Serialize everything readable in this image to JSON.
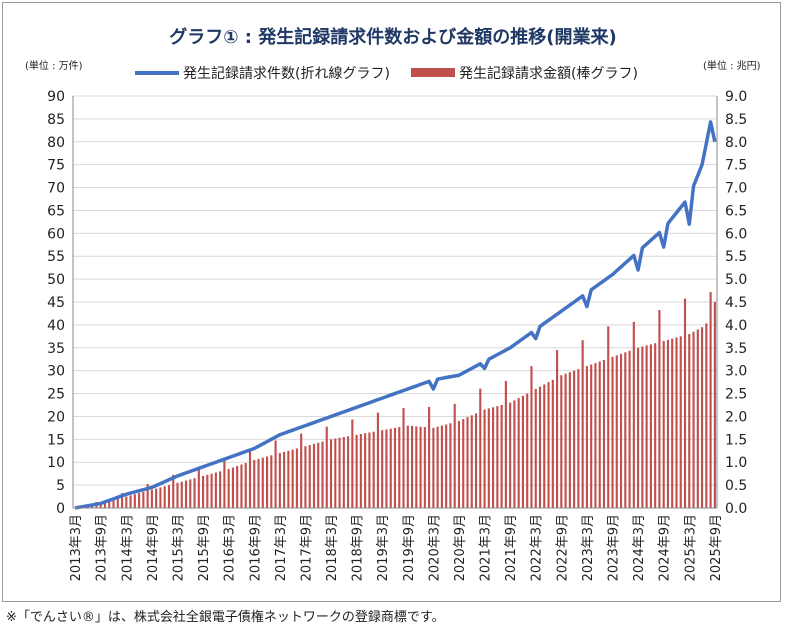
{
  "footnote": "※「でんさい®」は、株式会社全銀電子債権ネットワークの登録商標です。",
  "chart_data": {
    "type": "bar+line",
    "title": "グラフ① : 発生記録請求件数および金額の推移(開業来)",
    "left_unit": "(単位 : 万件)",
    "right_unit": "(単位 : 兆円)",
    "left_ticks": [
      "0",
      "5",
      "10",
      "15",
      "20",
      "25",
      "30",
      "35",
      "40",
      "45",
      "50",
      "55",
      "60",
      "65",
      "70",
      "75",
      "80",
      "85",
      "90"
    ],
    "right_ticks": [
      "0.0",
      "0.5",
      "1.0",
      "1.5",
      "2.0",
      "2.5",
      "3.0",
      "3.5",
      "4.0",
      "4.5",
      "5.0",
      "5.5",
      "6.0",
      "6.5",
      "7.0",
      "7.5",
      "8.0",
      "8.5",
      "9.0"
    ],
    "left_ylim": [
      0,
      90
    ],
    "right_ylim": [
      0,
      9.0
    ],
    "x_labels": [
      "2013年3月",
      "2013年9月",
      "2014年3月",
      "2014年9月",
      "2015年3月",
      "2015年9月",
      "2016年3月",
      "2016年9月",
      "2017年3月",
      "2017年9月",
      "2018年3月",
      "2018年9月",
      "2019年3月",
      "2019年9月",
      "2020年3月",
      "2020年9月",
      "2021年3月",
      "2021年9月",
      "2022年3月",
      "2022年9月",
      "2023年3月",
      "2023年9月",
      "2024年3月",
      "2024年9月",
      "2025年3月",
      "2025年9月"
    ],
    "legend": {
      "line_label": "発生記録請求件数(折れ線グラフ)",
      "bar_label": "発生記録請求金額(棒グラフ)",
      "placement": "top-center"
    },
    "colors": {
      "line": "#4472c4",
      "bar": "#c0504d",
      "grid": "#d9d9d9",
      "axis": "#888888",
      "title": "#1f3864"
    },
    "line_series": {
      "name": "発生記録請求件数",
      "unit": "万件",
      "months": 151,
      "anchors": [
        [
          0,
          0
        ],
        [
          6,
          1
        ],
        [
          12,
          3
        ],
        [
          18,
          4.5
        ],
        [
          24,
          7
        ],
        [
          30,
          9
        ],
        [
          36,
          11
        ],
        [
          42,
          13
        ],
        [
          48,
          16
        ],
        [
          54,
          18
        ],
        [
          60,
          20
        ],
        [
          66,
          22
        ],
        [
          72,
          24
        ],
        [
          78,
          26
        ],
        [
          84,
          28
        ],
        [
          90,
          29
        ],
        [
          96,
          32
        ],
        [
          102,
          35
        ],
        [
          108,
          39
        ],
        [
          114,
          43
        ],
        [
          120,
          47
        ],
        [
          126,
          51
        ],
        [
          132,
          56
        ],
        [
          138,
          61
        ],
        [
          144,
          68
        ],
        [
          147,
          75
        ],
        [
          150,
          89
        ]
      ],
      "dips": [
        [
          84,
          -2
        ],
        [
          96,
          -1.5
        ],
        [
          108,
          -2
        ],
        [
          120,
          -3
        ],
        [
          132,
          -4
        ],
        [
          138,
          -4
        ],
        [
          144,
          -6
        ],
        [
          150,
          -9
        ]
      ]
    },
    "bar_series": {
      "name": "発生記録請求金額",
      "unit": "兆円",
      "months": 151,
      "anchors": [
        [
          0,
          0
        ],
        [
          6,
          0.1
        ],
        [
          12,
          0.25
        ],
        [
          18,
          0.4
        ],
        [
          24,
          0.55
        ],
        [
          30,
          0.7
        ],
        [
          36,
          0.85
        ],
        [
          42,
          1.05
        ],
        [
          48,
          1.2
        ],
        [
          54,
          1.35
        ],
        [
          60,
          1.5
        ],
        [
          66,
          1.6
        ],
        [
          72,
          1.7
        ],
        [
          78,
          1.8
        ],
        [
          84,
          1.75
        ],
        [
          90,
          1.9
        ],
        [
          96,
          2.15
        ],
        [
          102,
          2.3
        ],
        [
          108,
          2.6
        ],
        [
          114,
          2.9
        ],
        [
          120,
          3.1
        ],
        [
          126,
          3.3
        ],
        [
          132,
          3.5
        ],
        [
          138,
          3.65
        ],
        [
          144,
          3.8
        ],
        [
          147,
          3.95
        ],
        [
          150,
          4.2
        ]
      ],
      "spikes": [
        [
          5,
          0.05
        ],
        [
          11,
          0.1
        ],
        [
          17,
          0.15
        ],
        [
          23,
          0.2
        ],
        [
          29,
          0.2
        ],
        [
          35,
          0.25
        ],
        [
          41,
          0.25
        ],
        [
          47,
          0.3
        ],
        [
          53,
          0.3
        ],
        [
          59,
          0.3
        ],
        [
          65,
          0.35
        ],
        [
          71,
          0.4
        ],
        [
          77,
          0.4
        ],
        [
          83,
          0.45
        ],
        [
          89,
          0.4
        ],
        [
          95,
          0.5
        ],
        [
          101,
          0.5
        ],
        [
          107,
          0.55
        ],
        [
          113,
          0.6
        ],
        [
          119,
          0.6
        ],
        [
          125,
          0.7
        ],
        [
          131,
          0.6
        ],
        [
          137,
          0.7
        ],
        [
          143,
          0.8
        ],
        [
          149,
          0.6
        ],
        [
          150,
          0.3
        ]
      ]
    }
  }
}
